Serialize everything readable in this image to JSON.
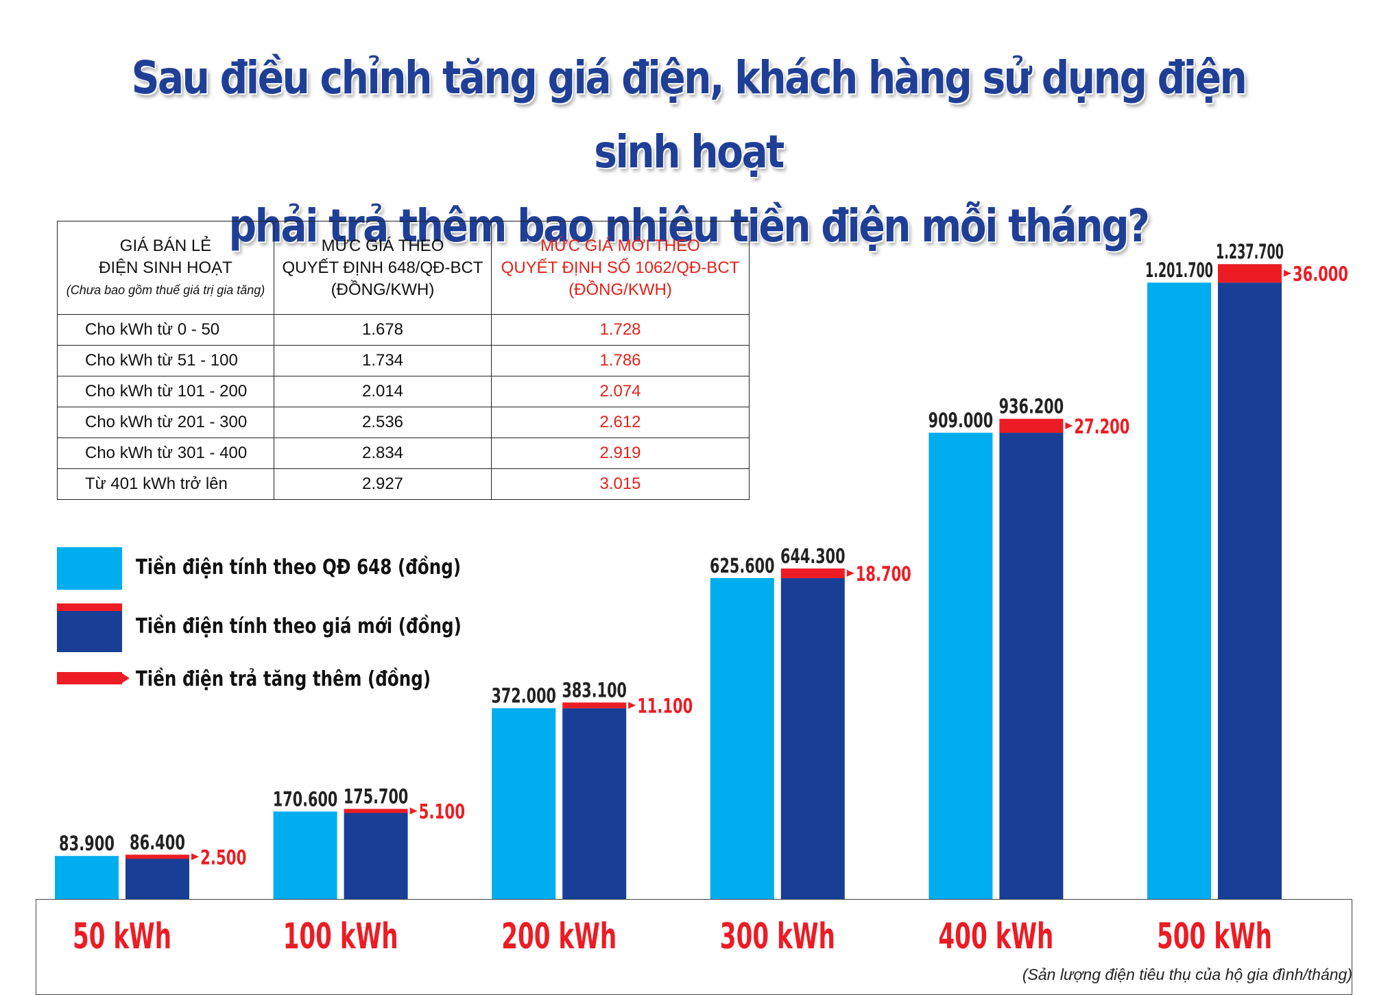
{
  "title": {
    "line1": "Sau điều chỉnh tăng giá điện, khách hàng sử dụng điện sinh hoạt",
    "line2": "phải trả thêm bao nhiêu tiền điện mỗi tháng?"
  },
  "table": {
    "header": {
      "col1_line1": "GIÁ BÁN LẺ",
      "col1_line2": "ĐIỆN SINH HOẠT",
      "col1_note": "(Chưa bao gồm thuế giá trị gia tăng)",
      "col2_line1": "MỨC GIÁ THEO",
      "col2_line2": "QUYẾT ĐỊNH 648/QĐ-BCT",
      "col2_line3": "(ĐỒNG/KWH)",
      "col3_line1": "MỨC GIÁ MỚI THEO",
      "col3_line2": "QUYẾT ĐỊNH SỐ 1062/QĐ-BCT",
      "col3_line3": "(ĐỒNG/KWH)"
    },
    "rows": [
      {
        "label": "Cho kWh từ 0 - 50",
        "old": "1.678",
        "new": "1.728"
      },
      {
        "label": "Cho kWh từ  51 - 100",
        "old": "1.734",
        "new": "1.786"
      },
      {
        "label": "Cho kWh từ 101 - 200",
        "old": "2.014",
        "new": "2.074"
      },
      {
        "label": "Cho kWh từ 201 - 300",
        "old": "2.536",
        "new": "2.612"
      },
      {
        "label": "Cho kWh từ 301 - 400",
        "old": "2.834",
        "new": "2.919"
      },
      {
        "label": "Từ 401 kWh trở lên",
        "old": "2.927",
        "new": "3.015"
      }
    ]
  },
  "legend": {
    "old": "Tiền điện tính theo QĐ 648 (đồng)",
    "new": "Tiền điện tính theo giá mới (đồng)",
    "increase": "Tiền điện trả tăng thêm (đồng)"
  },
  "colors": {
    "old_bar": "#00adef",
    "new_bar": "#183f95",
    "increase": "#ed1c24",
    "title": "#1f3f97",
    "label_dark": "#222222"
  },
  "chart_data": {
    "type": "bar",
    "categories": [
      "50 kWh",
      "100 kWh",
      "200 kWh",
      "300 kWh",
      "400 kWh",
      "500 kWh"
    ],
    "series": [
      {
        "name": "Tiền điện tính theo QĐ 648 (đồng)",
        "values": [
          83900,
          170600,
          372000,
          625600,
          909000,
          1201700
        ],
        "labels": [
          "83.900",
          "170.600",
          "372.000",
          "625.600",
          "909.000",
          "1.201.700"
        ]
      },
      {
        "name": "Tiền điện tính theo giá mới (đồng)",
        "values": [
          86400,
          175700,
          383100,
          644300,
          936200,
          1237700
        ],
        "labels": [
          "86.400",
          "175.700",
          "383.100",
          "644.300",
          "936.200",
          "1.237.700"
        ]
      },
      {
        "name": "Tiền điện trả tăng thêm (đồng)",
        "values": [
          2500,
          5100,
          11100,
          18700,
          27200,
          36000
        ],
        "labels": [
          "2.500",
          "5.100",
          "11.100",
          "18.700",
          "27.200",
          "36.000"
        ]
      }
    ],
    "xlabel": "(Sản lượng điện tiêu thụ của hộ gia đình/tháng)",
    "ylim": [
      0,
      1300000
    ],
    "grid": false,
    "legend_position": "left"
  }
}
